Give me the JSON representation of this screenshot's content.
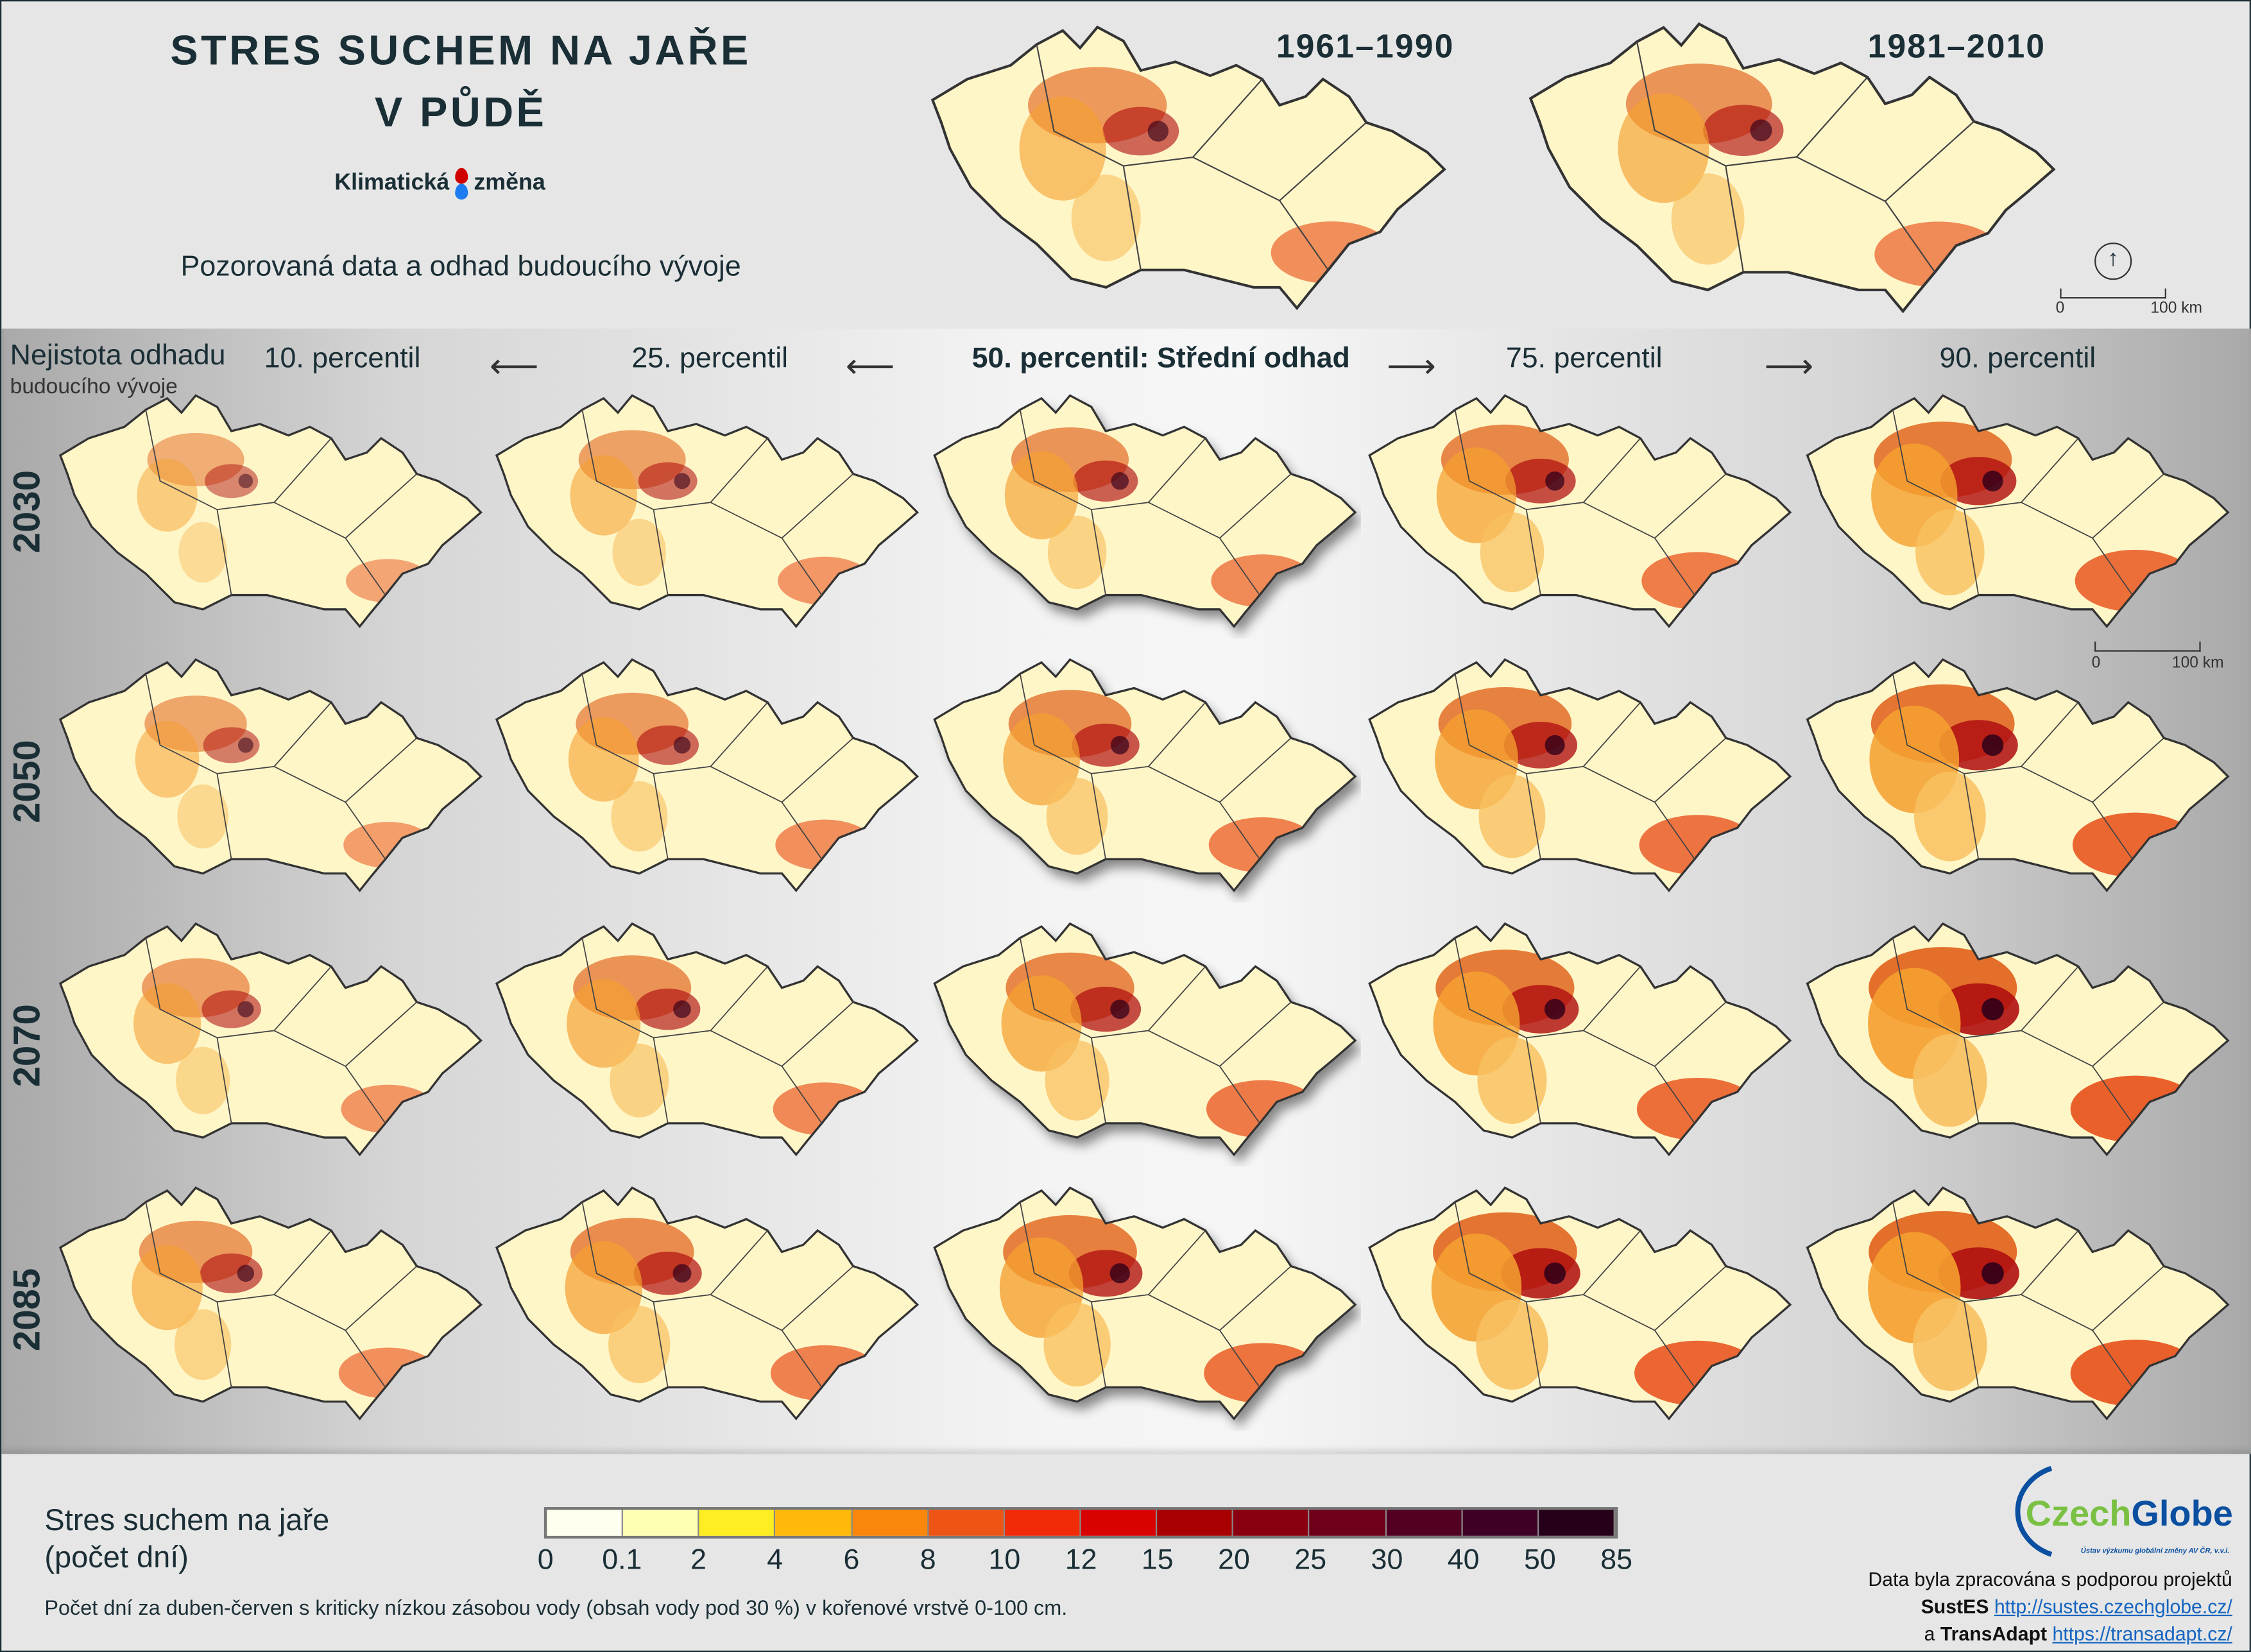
{
  "header": {
    "title_line1": "STRES SUCHEM NA JAŘE",
    "title_line2": "V PŮDĚ",
    "brand_left": "Klimatická",
    "brand_right": "změna",
    "subtitle": "Pozorovaná data a odhad budoucího vývoje"
  },
  "observed": {
    "periods": [
      "1961–1990",
      "1981–2010"
    ],
    "scale_start": "0",
    "scale_end": "100 km"
  },
  "projections": {
    "uncertainty_label": "Nejistota odhadu",
    "uncertainty_sub": "budoucího vývoje",
    "columns": [
      "10. percentil",
      "25. percentil",
      "50. percentil: Střední odhad",
      "75. percentil",
      "90. percentil"
    ],
    "rows": [
      "2030",
      "2050",
      "2070",
      "2085"
    ],
    "scale_start": "0",
    "scale_end": "100 km"
  },
  "legend": {
    "title_line1": "Stres suchem na jaře",
    "title_line2": "(počet dní)",
    "ticks": [
      "0",
      "0.1",
      "2",
      "4",
      "6",
      "8",
      "10",
      "12",
      "15",
      "20",
      "25",
      "30",
      "40",
      "50",
      "85"
    ],
    "colors": [
      "#fffff0",
      "#ffffb3",
      "#ffee22",
      "#ffb90b",
      "#fa870b",
      "#ee5514",
      "#f12b07",
      "#d90000",
      "#a80000",
      "#8a0010",
      "#6d0018",
      "#520022",
      "#3f0025",
      "#250018"
    ],
    "note": "Počet dní za duben-červen s kriticky nízkou zásobou vody (obsah vody pod 30 %) v kořenové vrstvě 0-100 cm."
  },
  "credits": {
    "logo_green": "Czech",
    "logo_blue": "Globe",
    "logo_sub": "Ústav výzkumu globální změny AV ČR, v.v.i.",
    "line1": "Data byla zpracována s podporou projektů",
    "project1": "SustES",
    "link1": "http://sustes.czechglobe.cz/",
    "conj": "a",
    "project2": "TransAdapt",
    "link2": "https://transadapt.cz/"
  }
}
